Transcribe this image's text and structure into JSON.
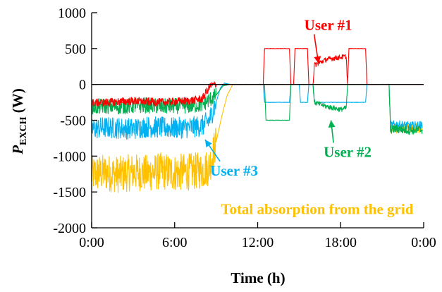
{
  "chart_data": {
    "type": "line",
    "title": "",
    "xlabel": "Time (h)",
    "ylabel": {
      "main": "P",
      "sub": "EXCH",
      "unit": " (W)"
    },
    "xlim": [
      0,
      24
    ],
    "ylim": [
      -2000,
      1000
    ],
    "x_ticks": [
      0,
      6,
      12,
      18,
      24
    ],
    "x_tick_labels": [
      "0:00",
      "6:00",
      "12:00",
      "18:00",
      "0:00"
    ],
    "y_ticks": [
      1000,
      500,
      0,
      -500,
      -1000,
      -1500,
      -2000
    ],
    "y_tick_labels": [
      "1000",
      "500",
      "0",
      "-500",
      "-1000",
      "-1500",
      "-2000"
    ],
    "grid": false,
    "legend": "none",
    "series": [
      {
        "color": "#ffc000",
        "points": [
          [
            0,
            -1250
          ],
          [
            1,
            -1230
          ],
          [
            2,
            -1260
          ],
          [
            3,
            -1220
          ],
          [
            4,
            -1240
          ],
          [
            5,
            -1210
          ],
          [
            6,
            -1230
          ],
          [
            7,
            -1220
          ],
          [
            8,
            -1200
          ],
          [
            8.5,
            -1150
          ],
          [
            9,
            -800
          ],
          [
            9.4,
            -450
          ],
          [
            9.8,
            -150
          ],
          [
            10.2,
            0
          ],
          [
            12,
            0
          ],
          [
            15,
            0
          ],
          [
            18,
            0
          ],
          [
            20,
            0
          ],
          [
            21.5,
            0
          ],
          [
            21.6,
            -600
          ],
          [
            22,
            -620
          ],
          [
            23,
            -600
          ],
          [
            23.9,
            -620
          ]
        ]
      },
      {
        "color": "#00b0f0",
        "points": [
          [
            0,
            -620
          ],
          [
            1,
            -600
          ],
          [
            2,
            -610
          ],
          [
            3,
            -620
          ],
          [
            4,
            -590
          ],
          [
            5,
            -600
          ],
          [
            6,
            -610
          ],
          [
            7,
            -600
          ],
          [
            8,
            -580
          ],
          [
            8.5,
            -500
          ],
          [
            9,
            -250
          ],
          [
            9.3,
            -50
          ],
          [
            9.6,
            20
          ],
          [
            10,
            0
          ],
          [
            12,
            0
          ],
          [
            12.4,
            0
          ],
          [
            12.5,
            -250
          ],
          [
            14.3,
            -250
          ],
          [
            14.4,
            0
          ],
          [
            15,
            0
          ],
          [
            15.1,
            -250
          ],
          [
            15.6,
            -250
          ],
          [
            15.7,
            0
          ],
          [
            16,
            0
          ],
          [
            16.1,
            -250
          ],
          [
            19.8,
            -250
          ],
          [
            19.9,
            0
          ],
          [
            21.5,
            0
          ],
          [
            21.6,
            -570
          ],
          [
            22,
            -560
          ],
          [
            23,
            -580
          ],
          [
            23.9,
            -570
          ]
        ]
      },
      {
        "color": "#00b050",
        "points": [
          [
            0,
            -320
          ],
          [
            1,
            -300
          ],
          [
            2,
            -310
          ],
          [
            3,
            -300
          ],
          [
            4,
            -290
          ],
          [
            5,
            -310
          ],
          [
            6,
            -300
          ],
          [
            7,
            -300
          ],
          [
            8,
            -280
          ],
          [
            9,
            -150
          ],
          [
            9.5,
            -20
          ],
          [
            10,
            0
          ],
          [
            12,
            0
          ],
          [
            12.5,
            0
          ],
          [
            12.6,
            -500
          ],
          [
            14.3,
            -500
          ],
          [
            14.4,
            0
          ],
          [
            16,
            0
          ],
          [
            16.1,
            -250
          ],
          [
            17,
            -310
          ],
          [
            18,
            -350
          ],
          [
            18.4,
            -330
          ],
          [
            18.5,
            0
          ],
          [
            21.5,
            0
          ],
          [
            21.6,
            -630
          ],
          [
            22,
            -620
          ],
          [
            23,
            -640
          ],
          [
            23.9,
            -630
          ]
        ]
      },
      {
        "color": "#ff0000",
        "points": [
          [
            0,
            -260
          ],
          [
            1,
            -250
          ],
          [
            2,
            -240
          ],
          [
            3,
            -230
          ],
          [
            4,
            -240
          ],
          [
            5,
            -250
          ],
          [
            6,
            -240
          ],
          [
            7,
            -230
          ],
          [
            8,
            -200
          ],
          [
            8.3,
            -100
          ],
          [
            8.6,
            -20
          ],
          [
            9,
            0
          ],
          [
            12,
            0
          ],
          [
            12.4,
            0
          ],
          [
            12.5,
            500
          ],
          [
            14.3,
            500
          ],
          [
            14.4,
            0
          ],
          [
            14.6,
            0
          ],
          [
            14.7,
            500
          ],
          [
            15.6,
            500
          ],
          [
            15.7,
            0
          ],
          [
            16,
            0
          ],
          [
            16.1,
            270
          ],
          [
            17,
            350
          ],
          [
            18,
            380
          ],
          [
            18.4,
            390
          ],
          [
            18.5,
            0
          ],
          [
            18.6,
            500
          ],
          [
            19.8,
            500
          ],
          [
            19.9,
            0
          ],
          [
            21.5,
            0
          ],
          [
            23.9,
            0
          ]
        ]
      }
    ],
    "annotations": [
      {
        "text": "User #1",
        "color": "#ff0000",
        "x": 17.1,
        "y": 760,
        "arrow_to": [
          16.4,
          290
        ]
      },
      {
        "text": "User #2",
        "color": "#00b050",
        "x": 18.5,
        "y": -1010,
        "arrow_to": [
          17.3,
          -500
        ]
      },
      {
        "text": "User #3",
        "color": "#00b0f0",
        "x": 10.3,
        "y": -1270,
        "arrow_to": [
          8.2,
          -770
        ]
      },
      {
        "text": "Total absorption from the grid",
        "color": "#ffc000",
        "x": 16.3,
        "y": -1810,
        "arrow_to": null
      }
    ]
  }
}
